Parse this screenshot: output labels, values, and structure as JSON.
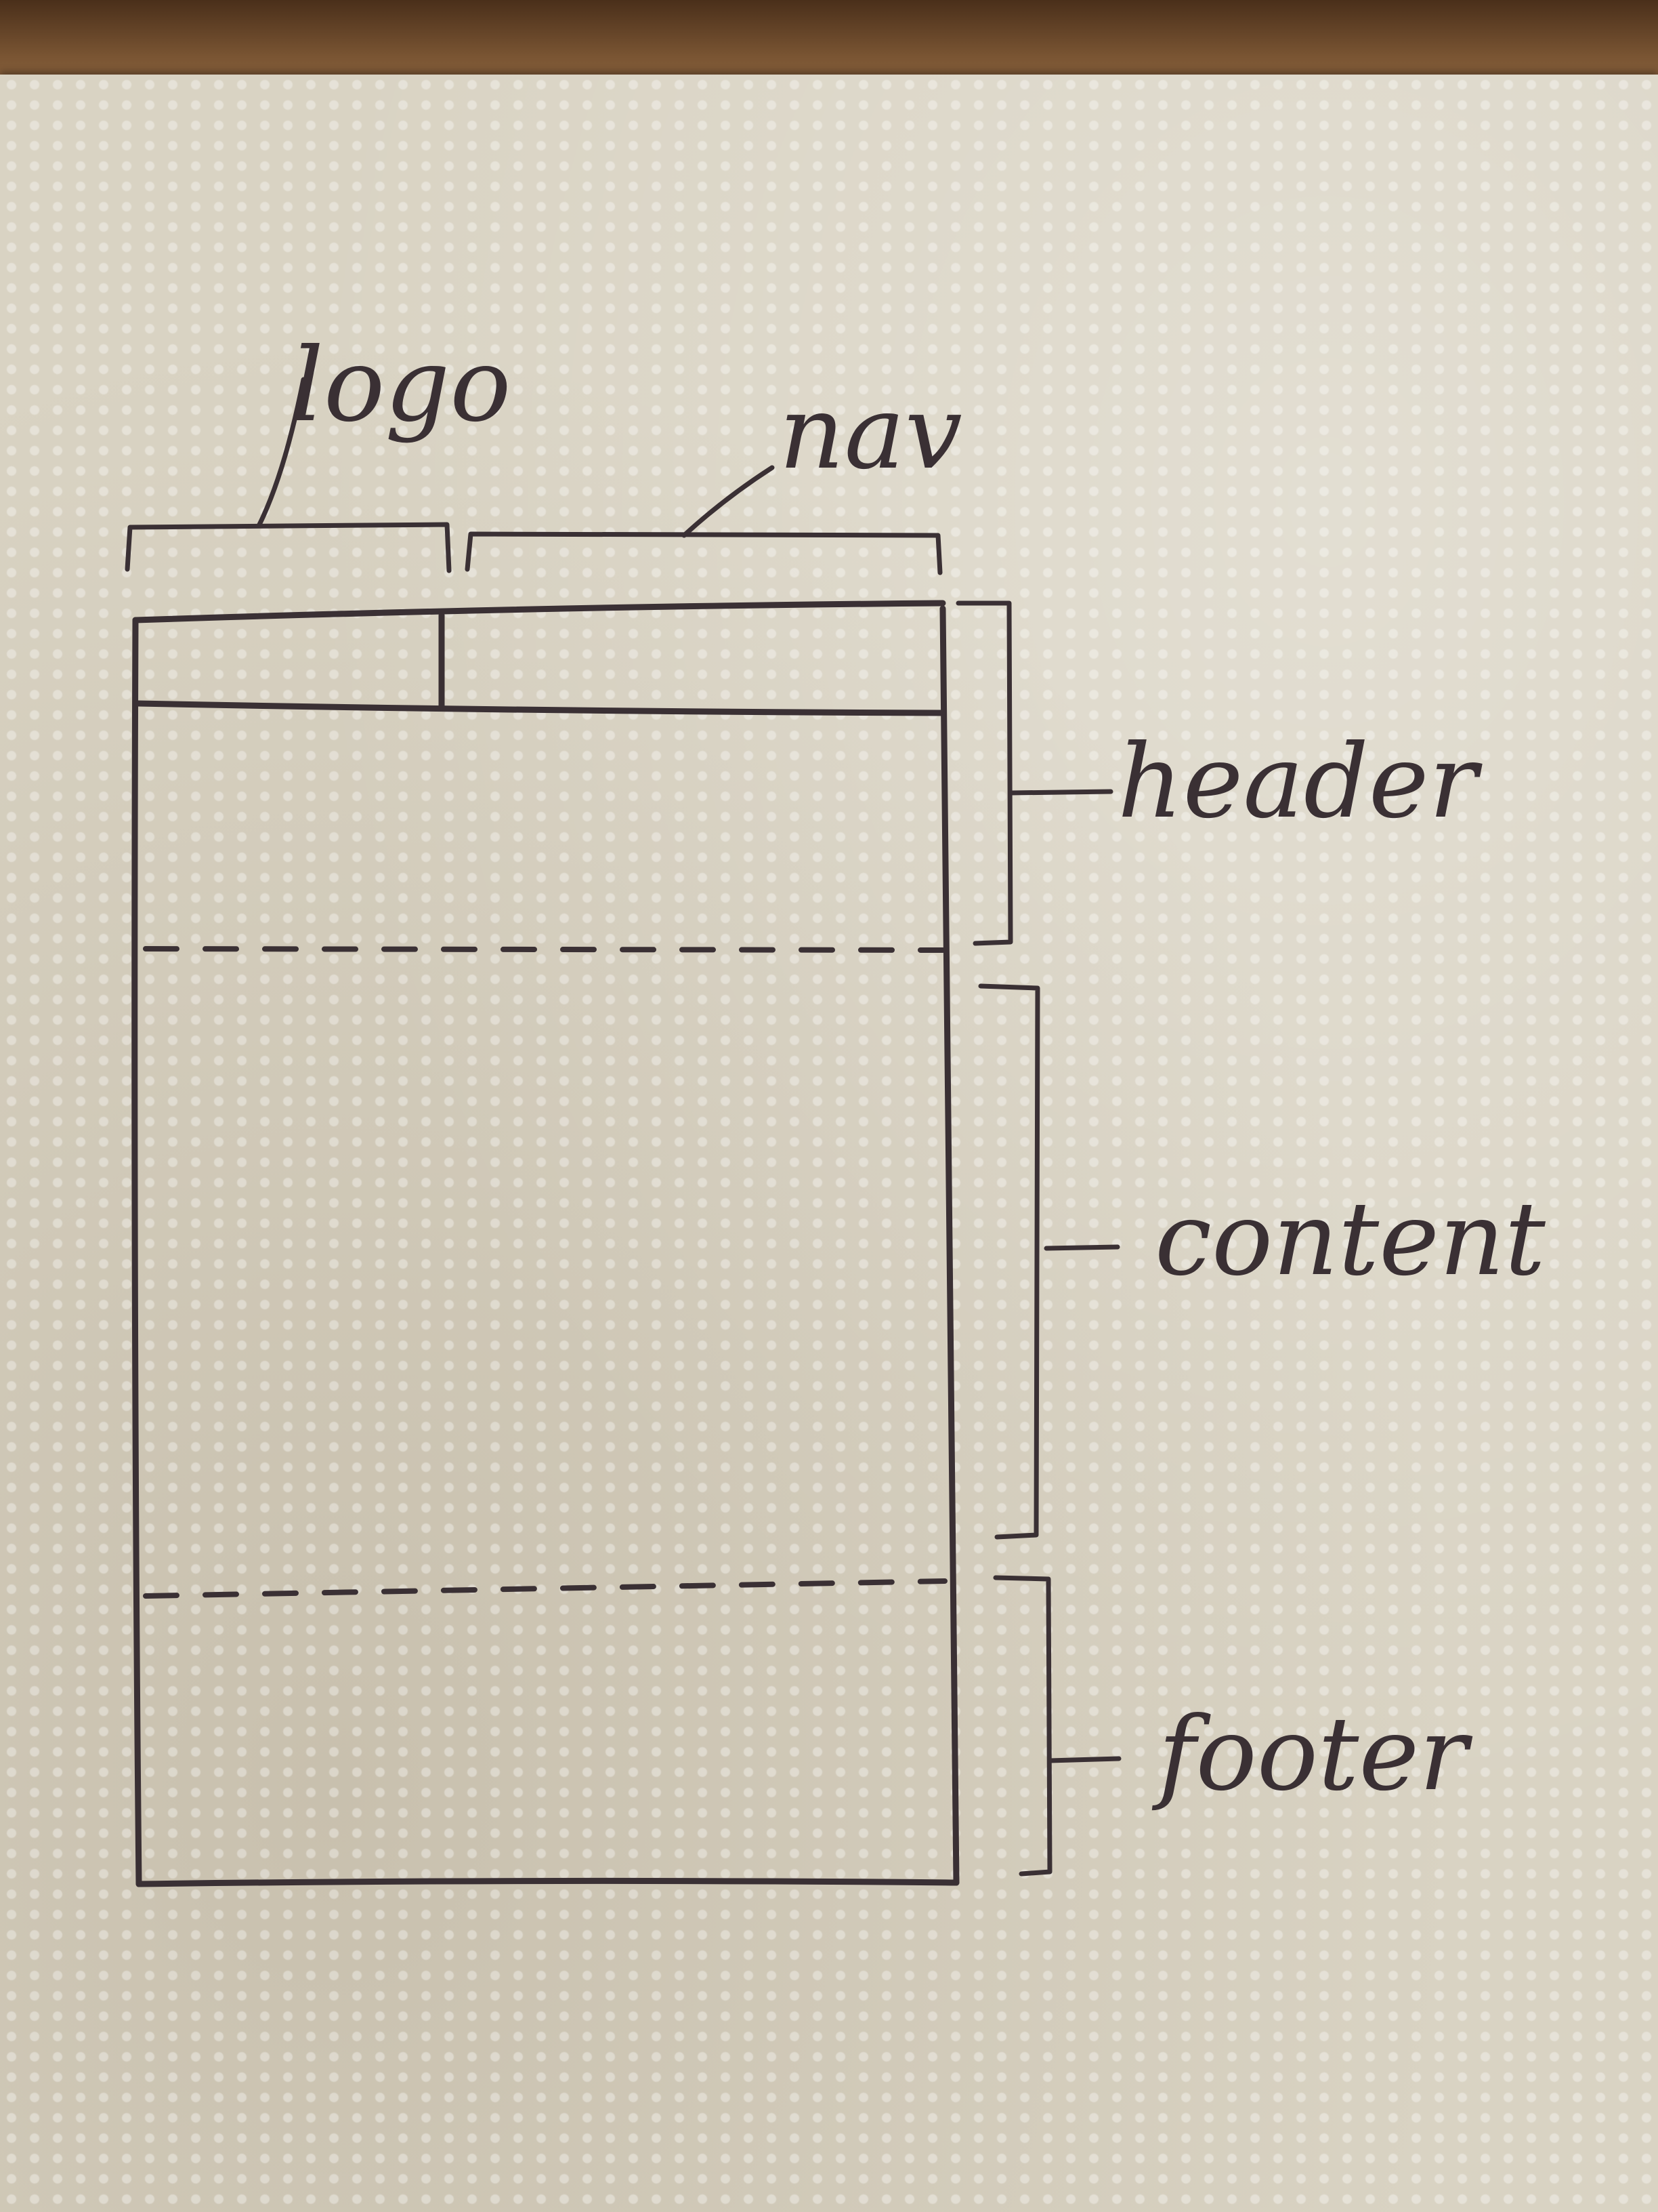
{
  "labels": {
    "logo": "logo",
    "nav": "nav",
    "header": "header",
    "content": "content",
    "footer": "footer"
  },
  "colors": {
    "ink": "#3a3034",
    "paper": "#d9d3c3",
    "table": "#6b4a2e"
  }
}
